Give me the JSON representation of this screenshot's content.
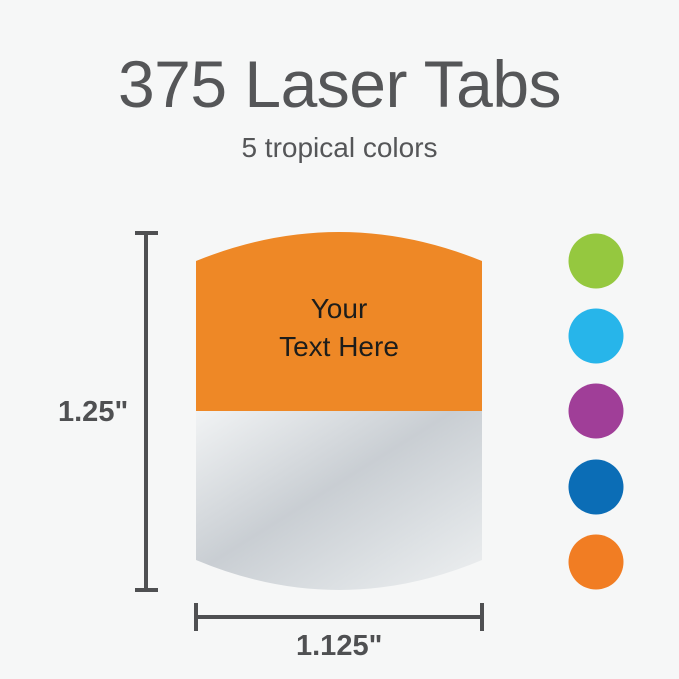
{
  "title": "375 Laser Tabs",
  "subtitle": "5 tropical colors",
  "tab": {
    "line1": "Your",
    "line2": "Text Here",
    "color": "#ee8826"
  },
  "dimensions": {
    "height": "1.25\"",
    "width": "1.125\""
  },
  "swatches": [
    {
      "name": "green",
      "color": "#95c83f"
    },
    {
      "name": "light-blue",
      "color": "#27b5ea"
    },
    {
      "name": "purple",
      "color": "#a03e98"
    },
    {
      "name": "blue",
      "color": "#0b6db6"
    },
    {
      "name": "orange",
      "color": "#f17d23"
    }
  ]
}
